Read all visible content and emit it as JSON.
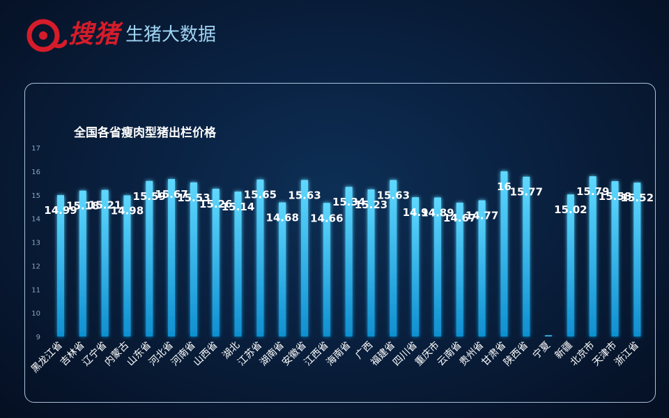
{
  "brand": {
    "logo_name": "搜猪",
    "subtitle": "生猪大数据",
    "logo_color": "#d61c2a",
    "subtitle_color": "#9fd4f2"
  },
  "chart_data": {
    "type": "bar",
    "title": "全国各省瘦肉型猪出栏价格",
    "xlabel": "",
    "ylabel": "",
    "ylim": [
      9,
      17
    ],
    "yticks": [
      9,
      10,
      11,
      12,
      13,
      14,
      15,
      16,
      17
    ],
    "categories": [
      "黑龙江省",
      "吉林省",
      "辽宁省",
      "内蒙古",
      "山东省",
      "河北省",
      "河南省",
      "山西省",
      "湖北",
      "江苏省",
      "湖南省",
      "安徽省",
      "江西省",
      "海南省",
      "广西",
      "福建省",
      "四川省",
      "重庆市",
      "云南省",
      "贵州省",
      "甘肃省",
      "陕西省",
      "宁夏",
      "新疆",
      "北京市",
      "天津市",
      "浙江省"
    ],
    "values": [
      14.99,
      15.18,
      15.21,
      14.98,
      15.59,
      15.67,
      15.53,
      15.26,
      15.14,
      15.65,
      14.68,
      15.63,
      14.66,
      15.34,
      15.23,
      15.63,
      14.9,
      14.89,
      14.67,
      14.77,
      16,
      15.77,
      9.05,
      15.02,
      15.79,
      15.58,
      15.52
    ],
    "labels": [
      "14.99",
      "15.18",
      "15.21",
      "14.98",
      "15.59",
      "15.67",
      "15.53",
      "15.26",
      "15.14",
      "15.65",
      "14.68",
      "15.63",
      "14.66",
      "15.34",
      "15.23",
      "15.63",
      "14.9",
      "14.89",
      "14.67",
      "14.77",
      "16",
      "15.77",
      "",
      "15.02",
      "15.79",
      "15.58",
      "15.52"
    ],
    "bar_color": "#19b6f0",
    "grid": false
  }
}
